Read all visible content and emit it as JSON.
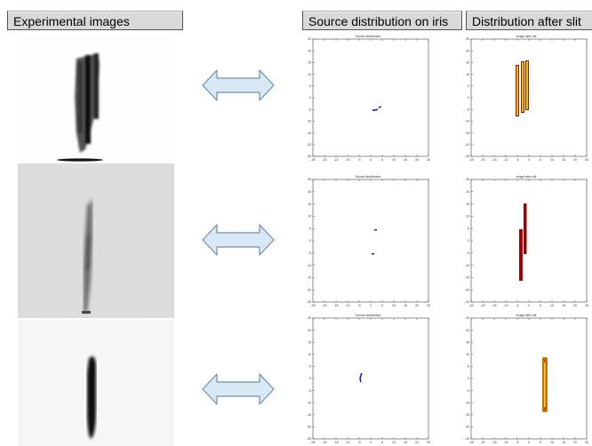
{
  "headers": {
    "experimental": "Experimental images",
    "source": "Source distribution on iris",
    "after_slit": "Distribution after slit"
  },
  "plot_titles": {
    "source": "Source distribution",
    "slit": "image after slit"
  },
  "axis": {
    "y_ticks": [
      "25",
      "20",
      "15",
      "10",
      "5",
      "0",
      "-5",
      "-10",
      "-15",
      "-20",
      "-25"
    ],
    "x_ticks": [
      "-25",
      "-20",
      "-15",
      "-10",
      "-5",
      "0",
      "5",
      "10",
      "15",
      "20",
      "25"
    ]
  },
  "colors": {
    "header_bg": "#d9d9d9",
    "arrow_fill": "#d8e8f4",
    "arrow_stroke": "#6f8fa8",
    "source_points": "#1a1ad0",
    "slit_outer": "#8b1a00",
    "slit_inner": "#f2c400"
  },
  "icons": {
    "arrow": "double-headed-arrow-icon"
  }
}
